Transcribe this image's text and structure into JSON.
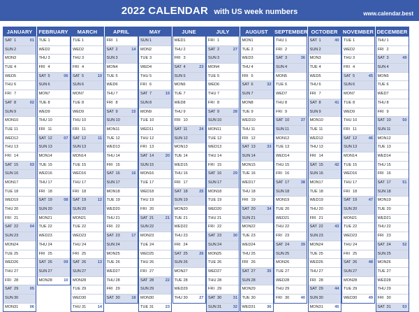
{
  "header": {
    "title": "2022 CALENDAR",
    "subtitle": "with US week numbers",
    "website": "www.calendar.best"
  },
  "colors": {
    "accent": "#3a5caa",
    "weekend_fill": "#d6ddef",
    "week_number": "#3a5caa"
  },
  "calendar": {
    "year": 2022,
    "months": [
      {
        "name": "JANUARY",
        "first_weekday": 6,
        "days_in_month": 31
      },
      {
        "name": "FEBRUARY",
        "first_weekday": 2,
        "days_in_month": 28
      },
      {
        "name": "MARCH",
        "first_weekday": 2,
        "days_in_month": 31
      },
      {
        "name": "APRIL",
        "first_weekday": 5,
        "days_in_month": 30
      },
      {
        "name": "MAY",
        "first_weekday": 0,
        "days_in_month": 31
      },
      {
        "name": "JUNE",
        "first_weekday": 3,
        "days_in_month": 30
      },
      {
        "name": "JULY",
        "first_weekday": 5,
        "days_in_month": 31
      },
      {
        "name": "AUGUST",
        "first_weekday": 1,
        "days_in_month": 31
      },
      {
        "name": "SEPTEMBER",
        "first_weekday": 4,
        "days_in_month": 30
      },
      {
        "name": "OCTOBER",
        "first_weekday": 6,
        "days_in_month": 31
      },
      {
        "name": "NOVEMBER",
        "first_weekday": 2,
        "days_in_month": 30
      },
      {
        "name": "DECEMBER",
        "first_weekday": 4,
        "days_in_month": 31
      }
    ],
    "weekday_abbrevs": [
      "SUN",
      "MON",
      "TUE",
      "WED",
      "THU",
      "FRI",
      "SAT"
    ],
    "week_number_rule": "US week numbering: weeks start Sunday; week 1 contains January 1; number shown on the Saturday ending each week and on a month's last day"
  }
}
